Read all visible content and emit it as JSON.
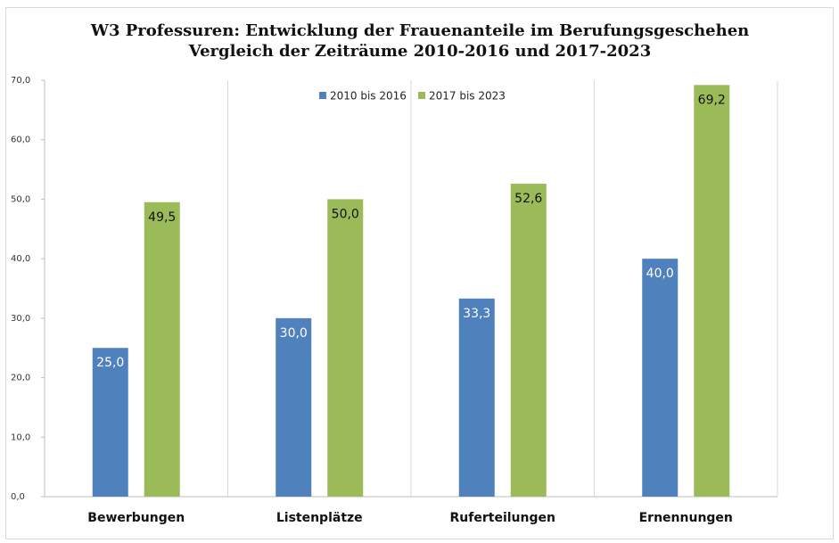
{
  "chart_data": {
    "type": "bar",
    "title": [
      "W3 Professuren: Entwicklung der Frauenanteile im Berufungsgeschehen",
      "Vergleich der Zeiträume 2010-2016 und 2017-2023"
    ],
    "categories": [
      "Bewerbungen",
      "Listenplätze",
      "Ruferteilungen",
      "Ernennungen"
    ],
    "series": [
      {
        "name": "2010 bis 2016",
        "color": "#4f81bd",
        "values": [
          25.0,
          30.0,
          33.3,
          40.0
        ],
        "value_labels": [
          "25,0",
          "30,0",
          "33,3",
          "40,0"
        ]
      },
      {
        "name": "2017 bis 2023",
        "color": "#9bbb59",
        "values": [
          49.5,
          50.0,
          52.6,
          69.2
        ],
        "value_labels": [
          "49,5",
          "50,0",
          "52,6",
          "69,2"
        ]
      }
    ],
    "ylim": [
      0,
      70
    ],
    "yticks": [
      {
        "value": 0,
        "label": "0,0"
      },
      {
        "value": 10,
        "label": "10,0"
      },
      {
        "value": 20,
        "label": "20,0"
      },
      {
        "value": 30,
        "label": "30,0"
      },
      {
        "value": 40,
        "label": "40,0"
      },
      {
        "value": 50,
        "label": "50,0"
      },
      {
        "value": 60,
        "label": "60,0"
      },
      {
        "value": 70,
        "label": "70,0"
      }
    ],
    "legend": "top"
  }
}
